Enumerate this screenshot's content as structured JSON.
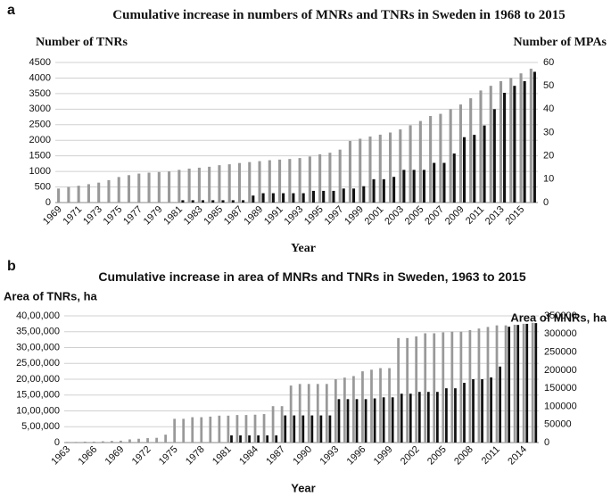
{
  "chart_data": [
    {
      "type": "bar",
      "panel": "a",
      "title": "Cumulative increase in numbers of MNRs and TNRs in Sweden in 1968 to 2015",
      "ylabel": "Number of TNRs",
      "y2label": "Number of MPAs",
      "xlabel": "Year",
      "categories": [
        "1969",
        null,
        "1971",
        null,
        "1973",
        null,
        "1975",
        null,
        "1977",
        null,
        "1979",
        null,
        "1981",
        null,
        "1983",
        null,
        "1985",
        null,
        "1987",
        null,
        "1989",
        null,
        "1991",
        null,
        "1993",
        null,
        "1995",
        null,
        "1997",
        null,
        "1999",
        null,
        "2001",
        null,
        "2003",
        null,
        "2005",
        null,
        "2007",
        null,
        "2009",
        null,
        "2011",
        null,
        "2013",
        null,
        "2015",
        null
      ],
      "series": [
        {
          "color": "#999999",
          "axis": "y",
          "values": [
            450,
            500,
            540,
            590,
            640,
            720,
            820,
            880,
            930,
            960,
            980,
            1000,
            1050,
            1090,
            1120,
            1150,
            1200,
            1230,
            1270,
            1300,
            1330,
            1360,
            1380,
            1400,
            1430,
            1480,
            1550,
            1600,
            1700,
            1980,
            2050,
            2120,
            2180,
            2250,
            2350,
            2480,
            2620,
            2780,
            2850,
            3000,
            3150,
            3350,
            3600,
            3750,
            3900,
            4000,
            4150,
            4300
          ]
        },
        {
          "color": "#111111",
          "axis": "y2",
          "values": [
            0,
            0,
            0,
            0,
            0,
            0,
            0,
            0,
            0,
            0,
            0,
            0,
            1,
            1,
            1,
            1,
            1,
            1,
            1,
            3,
            4,
            4,
            4,
            4,
            4,
            5,
            5,
            5,
            6,
            6,
            7,
            10,
            10,
            11,
            14,
            14,
            14,
            17,
            17,
            21,
            28,
            29,
            33,
            40,
            47,
            50,
            52,
            56
          ]
        }
      ],
      "ylim": [
        0,
        4500
      ],
      "yticks": [
        0,
        500,
        1000,
        1500,
        2000,
        2500,
        3000,
        3500,
        4000,
        4500
      ],
      "y2lim": [
        0,
        60
      ],
      "y2ticks": [
        0,
        10,
        20,
        30,
        40,
        50,
        60
      ],
      "grid": true
    },
    {
      "type": "bar",
      "panel": "b",
      "title": "Cumulative increase in area of MNRs and TNRs in Sweden, 1963 to 2015",
      "ylabel": "Area of TNRs, ha",
      "y2label": "Area of MNRs, ha",
      "xlabel": "Year",
      "categories": [
        "1963",
        null,
        null,
        "1966",
        null,
        null,
        "1969",
        null,
        null,
        "1972",
        null,
        null,
        "1975",
        null,
        null,
        "1978",
        null,
        null,
        "1981",
        null,
        null,
        "1984",
        null,
        null,
        "1987",
        null,
        null,
        "1990",
        null,
        null,
        "1993",
        null,
        null,
        "1996",
        null,
        null,
        "1999",
        null,
        null,
        "2002",
        null,
        null,
        "2005",
        null,
        null,
        "2008",
        null,
        null,
        "2011",
        null,
        null,
        "2014",
        null
      ],
      "series": [
        {
          "color": "#999999",
          "axis": "y",
          "values": [
            20000,
            20000,
            30000,
            30000,
            40000,
            50000,
            60000,
            100000,
            120000,
            140000,
            150000,
            250000,
            750000,
            750000,
            800000,
            800000,
            820000,
            850000,
            850000,
            870000,
            870000,
            880000,
            900000,
            1150000,
            1150000,
            1800000,
            1850000,
            1850000,
            1850000,
            1850000,
            2000000,
            2050000,
            2100000,
            2250000,
            2300000,
            2350000,
            2350000,
            3300000,
            3300000,
            3350000,
            3450000,
            3450000,
            3480000,
            3500000,
            3500000,
            3550000,
            3600000,
            3650000,
            3700000,
            3700000,
            3720000,
            3750000,
            3780000
          ]
        },
        {
          "color": "#111111",
          "axis": "y2",
          "values": [
            0,
            0,
            0,
            0,
            0,
            0,
            0,
            0,
            0,
            0,
            0,
            0,
            0,
            0,
            0,
            0,
            0,
            0,
            20000,
            20000,
            20000,
            20000,
            20000,
            20000,
            75000,
            75000,
            75000,
            75000,
            75000,
            75000,
            120000,
            120000,
            120000,
            120000,
            122000,
            125000,
            125000,
            135000,
            135000,
            140000,
            140000,
            140000,
            150000,
            150000,
            165000,
            175000,
            175000,
            180000,
            210000,
            320000,
            325000,
            328000,
            330000
          ]
        }
      ],
      "ylim": [
        0,
        4000000
      ],
      "yticks": [
        0,
        {
          "value": 500000,
          "label": "5,00,000"
        },
        {
          "value": 1000000,
          "label": "10,00,000"
        },
        {
          "value": 1500000,
          "label": "15,00,000"
        },
        {
          "value": 2000000,
          "label": "20,00,000"
        },
        {
          "value": 2500000,
          "label": "25,00,000"
        },
        {
          "value": 3000000,
          "label": "30,00,000"
        },
        {
          "value": 3500000,
          "label": "35,00,000"
        },
        {
          "value": 4000000,
          "label": "40,00,000"
        }
      ],
      "y2lim": [
        0,
        350000
      ],
      "y2ticks": [
        0,
        50000,
        100000,
        150000,
        200000,
        250000,
        300000,
        350000
      ],
      "grid": true
    }
  ]
}
